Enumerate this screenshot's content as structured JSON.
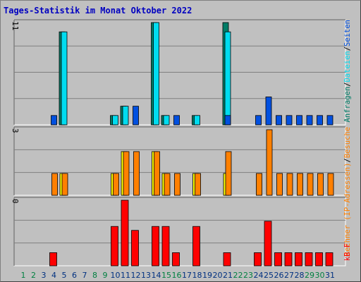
{
  "title": "Tages-Statistik im Monat Oktober 2022",
  "colors": {
    "background": "#c0c0c0",
    "title": "#0000c0",
    "grid": "#808080",
    "label_green": "#008040",
    "label_blue": "#003080",
    "anfragen": "#007c66",
    "dateien": "#00dcf0",
    "seiten": "#0050e0",
    "rechner": "#ffff00",
    "besuche": "#ff8000",
    "kb": "#ff0000",
    "outline": "#000000"
  },
  "chart_data": [
    {
      "type": "bar",
      "panel": "top",
      "categories": [
        "1",
        "2",
        "3",
        "4",
        "5",
        "6",
        "7",
        "8",
        "9",
        "10",
        "11",
        "12",
        "13",
        "14",
        "15",
        "16",
        "17",
        "18",
        "19",
        "20",
        "21",
        "22",
        "23",
        "24",
        "25",
        "26",
        "27",
        "28",
        "29",
        "30",
        "31"
      ],
      "series": [
        {
          "name": "Anfragen",
          "values": [
            0,
            0,
            0,
            0,
            10,
            0,
            0,
            0,
            0,
            1,
            2,
            0,
            0,
            11,
            1,
            0,
            0,
            1,
            0,
            0,
            11,
            0,
            0,
            0,
            0,
            0,
            0,
            0,
            0,
            0,
            0
          ]
        },
        {
          "name": "Dateien",
          "values": [
            0,
            0,
            0,
            0,
            10,
            0,
            0,
            0,
            0,
            1,
            2,
            0,
            0,
            11,
            1,
            0,
            0,
            1,
            0,
            0,
            10,
            0,
            0,
            0,
            0,
            0,
            0,
            0,
            0,
            0,
            0
          ]
        },
        {
          "name": "Seiten",
          "values": [
            0,
            0,
            0,
            1,
            0,
            0,
            0,
            0,
            0,
            0,
            0,
            2,
            0,
            0,
            0,
            1,
            0,
            0,
            0,
            0,
            1,
            0,
            0,
            1,
            3,
            1,
            1,
            1,
            1,
            1,
            1
          ]
        }
      ],
      "legend": [
        "Anfragen",
        "Dateien",
        "Seiten"
      ],
      "axis_label": "11",
      "ylim": [
        0,
        11
      ]
    },
    {
      "type": "bar",
      "panel": "middle",
      "categories": [
        "1",
        "2",
        "3",
        "4",
        "5",
        "6",
        "7",
        "8",
        "9",
        "10",
        "11",
        "12",
        "13",
        "14",
        "15",
        "16",
        "17",
        "18",
        "19",
        "20",
        "21",
        "22",
        "23",
        "24",
        "25",
        "26",
        "27",
        "28",
        "29",
        "30",
        "31"
      ],
      "series": [
        {
          "name": "Rechner",
          "values": [
            0,
            0,
            0,
            0,
            1,
            0,
            0,
            0,
            0,
            1,
            2,
            0,
            0,
            2,
            1,
            0,
            0,
            1,
            0,
            0,
            1,
            0,
            0,
            0,
            0,
            0,
            0,
            0,
            0,
            0,
            0
          ]
        },
        {
          "name": "Besuche",
          "values": [
            0,
            0,
            0,
            1,
            1,
            0,
            0,
            0,
            0,
            1,
            2,
            2,
            0,
            2,
            1,
            1,
            0,
            1,
            0,
            0,
            2,
            0,
            0,
            1,
            3,
            1,
            1,
            1,
            1,
            1,
            1
          ]
        }
      ],
      "legend": [
        "Rechner (IP-Adressen)",
        "Besuche"
      ],
      "axis_label": "3",
      "ylim": [
        0,
        3
      ]
    },
    {
      "type": "bar",
      "panel": "bottom",
      "categories": [
        "1",
        "2",
        "3",
        "4",
        "5",
        "6",
        "7",
        "8",
        "9",
        "10",
        "11",
        "12",
        "13",
        "14",
        "15",
        "16",
        "17",
        "18",
        "19",
        "20",
        "21",
        "22",
        "23",
        "24",
        "25",
        "26",
        "27",
        "28",
        "29",
        "30",
        "31"
      ],
      "series": [
        {
          "name": "kB F",
          "values": [
            0,
            0,
            0,
            1,
            0,
            0,
            0,
            0,
            0,
            3,
            5,
            2.7,
            0,
            3,
            3,
            1,
            0,
            3,
            0,
            0,
            1,
            0,
            0,
            1,
            3.4,
            1,
            1,
            1,
            1,
            1,
            1
          ]
        }
      ],
      "legend": [
        "kB F"
      ],
      "axis_label": "0",
      "ylim": [
        0,
        5
      ]
    }
  ],
  "xaxis": {
    "labels": [
      "1",
      "2",
      "3",
      "4",
      "5",
      "6",
      "7",
      "8",
      "9",
      "10",
      "11",
      "12",
      "13",
      "14",
      "15",
      "16",
      "17",
      "18",
      "19",
      "20",
      "21",
      "22",
      "23",
      "24",
      "25",
      "26",
      "27",
      "28",
      "29",
      "30",
      "31"
    ],
    "weekend_days": [
      1,
      2,
      8,
      9,
      15,
      16,
      22,
      23,
      29,
      30
    ]
  }
}
